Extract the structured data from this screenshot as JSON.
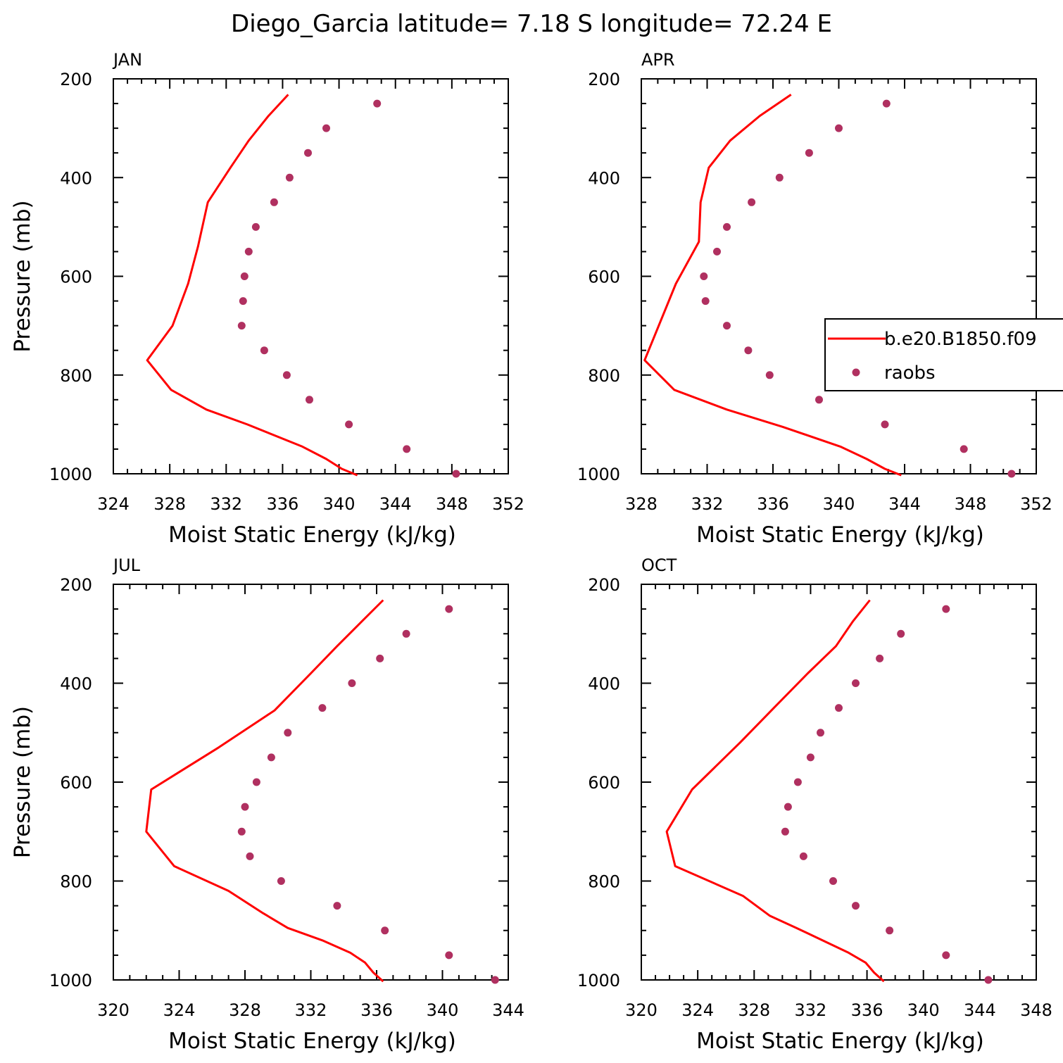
{
  "title": "Diego_Garcia  latitude= 7.18 S longitude= 72.24 E",
  "colors": {
    "model": "#ff0000",
    "obs": "#b03060"
  },
  "legend": {
    "model_label": "b.e20.B1850.f09",
    "obs_label": "raobs",
    "placement": "right-middle (APR panel)"
  },
  "chart_data": [
    {
      "type": "line",
      "panel": "JAN",
      "xlabel": "Moist Static Energy (kJ/kg)",
      "ylabel": "Pressure (mb)",
      "xlim": [
        324,
        352
      ],
      "xticks": [
        324,
        328,
        332,
        336,
        340,
        344,
        348,
        352
      ],
      "ylim": [
        200,
        1000
      ],
      "yticks": [
        200,
        400,
        600,
        800,
        1000
      ],
      "y_inverted": true,
      "grid": false,
      "series": [
        {
          "name": "b.e20.B1850.f09",
          "style": "line",
          "x": [
            336.4,
            335.0,
            333.6,
            332.3,
            330.7,
            330.0,
            329.3,
            328.2,
            326.4,
            328.1,
            330.6,
            333.5,
            337.4,
            339.1,
            340.2,
            341.3
          ],
          "y": [
            232,
            275,
            325,
            380,
            450,
            540,
            615,
            700,
            770,
            830,
            870,
            900,
            945,
            970,
            990,
            1003
          ]
        },
        {
          "name": "raobs",
          "style": "markers",
          "x": [
            342.7,
            339.1,
            337.8,
            336.5,
            335.4,
            334.1,
            333.6,
            333.3,
            333.2,
            333.1,
            334.7,
            336.3,
            337.9,
            340.7,
            344.8,
            348.3
          ],
          "y": [
            250,
            300,
            350,
            400,
            450,
            500,
            550,
            600,
            650,
            700,
            750,
            800,
            850,
            900,
            950,
            1000
          ]
        }
      ]
    },
    {
      "type": "line",
      "panel": "APR",
      "xlabel": "Moist Static Energy (kJ/kg)",
      "ylabel": "",
      "xlim": [
        328,
        352
      ],
      "xticks": [
        328,
        332,
        336,
        340,
        344,
        348,
        352
      ],
      "ylim": [
        200,
        1000
      ],
      "yticks": [
        200,
        400,
        600,
        800,
        1000
      ],
      "y_inverted": true,
      "grid": false,
      "series": [
        {
          "name": "b.e20.B1850.f09",
          "style": "line",
          "x": [
            337.1,
            335.2,
            333.4,
            332.1,
            331.6,
            331.5,
            330.1,
            328.2,
            330.0,
            333.2,
            336.6,
            340.1,
            341.7,
            342.8,
            343.8
          ],
          "y": [
            232,
            275,
            325,
            380,
            450,
            530,
            615,
            770,
            830,
            870,
            905,
            945,
            970,
            990,
            1003
          ]
        },
        {
          "name": "raobs",
          "style": "markers",
          "x": [
            342.9,
            340.0,
            338.2,
            336.4,
            334.7,
            333.2,
            332.6,
            331.8,
            331.9,
            333.2,
            334.5,
            335.8,
            338.8,
            342.8,
            347.6,
            350.5
          ],
          "y": [
            250,
            300,
            350,
            400,
            450,
            500,
            550,
            600,
            650,
            700,
            750,
            800,
            850,
            900,
            950,
            1000
          ]
        }
      ]
    },
    {
      "type": "line",
      "panel": "JUL",
      "xlabel": "Moist Static Energy (kJ/kg)",
      "ylabel": "Pressure (mb)",
      "xlim": [
        320,
        344
      ],
      "xticks": [
        320,
        324,
        328,
        332,
        336,
        340,
        344
      ],
      "ylim": [
        200,
        1000
      ],
      "yticks": [
        200,
        400,
        600,
        800,
        1000
      ],
      "y_inverted": true,
      "grid": false,
      "series": [
        {
          "name": "b.e20.B1850.f09",
          "style": "line",
          "x": [
            336.4,
            335.1,
            333.6,
            332.0,
            329.8,
            326.4,
            322.3,
            322.0,
            323.7,
            327.0,
            329.1,
            330.6,
            332.7,
            334.4,
            335.3,
            335.8,
            336.4
          ],
          "y": [
            232,
            275,
            325,
            380,
            455,
            530,
            615,
            700,
            770,
            820,
            865,
            895,
            920,
            945,
            965,
            985,
            1003
          ]
        },
        {
          "name": "raobs",
          "style": "markers",
          "x": [
            340.4,
            337.8,
            336.2,
            334.5,
            332.7,
            330.6,
            329.6,
            328.7,
            328.0,
            327.8,
            328.3,
            330.2,
            333.6,
            336.5,
            340.4,
            343.2
          ],
          "y": [
            250,
            300,
            350,
            400,
            450,
            500,
            550,
            600,
            650,
            700,
            750,
            800,
            850,
            900,
            950,
            1000
          ]
        }
      ]
    },
    {
      "type": "line",
      "panel": "OCT",
      "xlabel": "Moist Static Energy (kJ/kg)",
      "ylabel": "",
      "xlim": [
        320,
        348
      ],
      "xticks": [
        320,
        324,
        328,
        332,
        336,
        340,
        344,
        348
      ],
      "ylim": [
        200,
        1000
      ],
      "yticks": [
        200,
        400,
        600,
        800,
        1000
      ],
      "y_inverted": true,
      "grid": false,
      "series": [
        {
          "name": "b.e20.B1850.f09",
          "style": "line",
          "x": [
            336.2,
            335.0,
            333.8,
            331.8,
            329.4,
            327.0,
            323.6,
            321.8,
            322.4,
            327.2,
            329.1,
            331.0,
            334.7,
            335.9,
            336.5,
            337.2
          ],
          "y": [
            232,
            275,
            325,
            380,
            450,
            520,
            615,
            700,
            770,
            830,
            870,
            895,
            945,
            965,
            985,
            1003
          ]
        },
        {
          "name": "raobs",
          "style": "markers",
          "x": [
            341.6,
            338.4,
            336.9,
            335.2,
            334.0,
            332.7,
            332.0,
            331.1,
            330.4,
            330.2,
            331.5,
            333.6,
            335.2,
            337.6,
            341.6,
            344.6
          ],
          "y": [
            250,
            300,
            350,
            400,
            450,
            500,
            550,
            600,
            650,
            700,
            750,
            800,
            850,
            900,
            950,
            1000
          ]
        }
      ]
    }
  ]
}
